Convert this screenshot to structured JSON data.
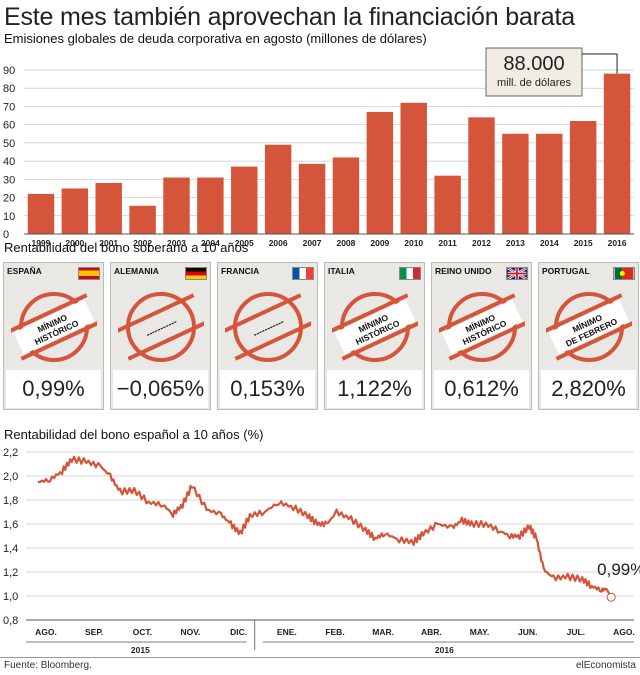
{
  "title": "Este mes también aprovechan la financiación barata",
  "colors": {
    "bar": "#d4553a",
    "line": "#d4553a",
    "grid": "#c8c8c8",
    "card_bg": "#e9e8e4",
    "stamp": "#d4553a"
  },
  "chart_data": [
    {
      "type": "bar",
      "title": "Emisiones globales de deuda corporativa en agosto (millones de dólares)",
      "categories": [
        "1999",
        "2000",
        "2001",
        "2002",
        "2003",
        "2004",
        "2005",
        "2006",
        "2007",
        "2008",
        "2009",
        "2010",
        "2011",
        "2012",
        "2013",
        "2014",
        "2015",
        "2016"
      ],
      "values": [
        22,
        25,
        28,
        15.5,
        31,
        31,
        37,
        49,
        38.5,
        42,
        67,
        72,
        32,
        64,
        55,
        55,
        62,
        88
      ],
      "ylim": [
        0,
        90
      ],
      "yticks": [
        0,
        10,
        20,
        30,
        40,
        50,
        60,
        70,
        80,
        90
      ],
      "grid": true,
      "annotation": {
        "value": "88.000",
        "unit": "mill. de dólares",
        "target": "2016"
      }
    },
    {
      "type": "line",
      "title": "Rentabilidad del bono español a 10 años (%)",
      "ylim": [
        0.8,
        2.2
      ],
      "yticks": [
        "0,8",
        "1,0",
        "1,2",
        "1,4",
        "1,6",
        "1,8",
        "2,0",
        "2,2"
      ],
      "grid": true,
      "x_months": [
        "AGO.",
        "SEP.",
        "OCT.",
        "NOV.",
        "DIC.",
        "ENE.",
        "FEB.",
        "MAR.",
        "ABR.",
        "MAY.",
        "JUN.",
        "JUL.",
        "AGO."
      ],
      "x_years": [
        "2015",
        "2016"
      ],
      "end_label": "0,99%",
      "monthly_points": [
        {
          "m": 0.0,
          "v": 1.95
        },
        {
          "m": 0.25,
          "v": 1.97
        },
        {
          "m": 0.5,
          "v": 2.04
        },
        {
          "m": 0.7,
          "v": 2.14
        },
        {
          "m": 1.0,
          "v": 2.12
        },
        {
          "m": 1.3,
          "v": 2.08
        },
        {
          "m": 1.5,
          "v": 2.0
        },
        {
          "m": 1.7,
          "v": 1.87
        },
        {
          "m": 2.0,
          "v": 1.88
        },
        {
          "m": 2.3,
          "v": 1.78
        },
        {
          "m": 2.6,
          "v": 1.76
        },
        {
          "m": 2.8,
          "v": 1.68
        },
        {
          "m": 3.0,
          "v": 1.76
        },
        {
          "m": 3.2,
          "v": 1.92
        },
        {
          "m": 3.5,
          "v": 1.72
        },
        {
          "m": 3.8,
          "v": 1.68
        },
        {
          "m": 4.0,
          "v": 1.6
        },
        {
          "m": 4.2,
          "v": 1.52
        },
        {
          "m": 4.4,
          "v": 1.67
        },
        {
          "m": 4.7,
          "v": 1.7
        },
        {
          "m": 5.0,
          "v": 1.78
        },
        {
          "m": 5.3,
          "v": 1.74
        },
        {
          "m": 5.6,
          "v": 1.67
        },
        {
          "m": 5.8,
          "v": 1.6
        },
        {
          "m": 6.0,
          "v": 1.6
        },
        {
          "m": 6.2,
          "v": 1.7
        },
        {
          "m": 6.5,
          "v": 1.64
        },
        {
          "m": 6.8,
          "v": 1.55
        },
        {
          "m": 7.0,
          "v": 1.48
        },
        {
          "m": 7.2,
          "v": 1.52
        },
        {
          "m": 7.5,
          "v": 1.47
        },
        {
          "m": 7.8,
          "v": 1.45
        },
        {
          "m": 8.0,
          "v": 1.52
        },
        {
          "m": 8.3,
          "v": 1.6
        },
        {
          "m": 8.6,
          "v": 1.57
        },
        {
          "m": 8.8,
          "v": 1.63
        },
        {
          "m": 9.0,
          "v": 1.6
        },
        {
          "m": 9.3,
          "v": 1.6
        },
        {
          "m": 9.6,
          "v": 1.54
        },
        {
          "m": 9.8,
          "v": 1.5
        },
        {
          "m": 10.0,
          "v": 1.5
        },
        {
          "m": 10.2,
          "v": 1.58
        },
        {
          "m": 10.35,
          "v": 1.48
        },
        {
          "m": 10.5,
          "v": 1.22
        },
        {
          "m": 10.7,
          "v": 1.15
        },
        {
          "m": 11.0,
          "v": 1.16
        },
        {
          "m": 11.3,
          "v": 1.14
        },
        {
          "m": 11.5,
          "v": 1.08
        },
        {
          "m": 11.7,
          "v": 1.05
        },
        {
          "m": 11.8,
          "v": 1.06
        },
        {
          "m": 11.9,
          "v": 0.99
        }
      ]
    }
  ],
  "bond_section": {
    "title": "Rentabilidad del bono soberano a 10 años",
    "cards": [
      {
        "country": "ESPAÑA",
        "flag": "spain-flag-icon",
        "stamp_line1": "MÍNIMO",
        "stamp_line2": "HISTÓRICO",
        "value": "0,99%"
      },
      {
        "country": "ALEMANIA",
        "flag": "germany-flag-icon",
        "stamp_line1": "-----------",
        "stamp_line2": "",
        "value": "−0,065%"
      },
      {
        "country": "FRANCIA",
        "flag": "france-flag-icon",
        "stamp_line1": "-----------",
        "stamp_line2": "",
        "value": "0,153%"
      },
      {
        "country": "ITALIA",
        "flag": "italy-flag-icon",
        "stamp_line1": "MÍNIMO",
        "stamp_line2": "HISTÓRICO",
        "value": "1,122%"
      },
      {
        "country": "REINO UNIDO",
        "flag": "uk-flag-icon",
        "stamp_line1": "MÍNIMO",
        "stamp_line2": "HISTÓRICO",
        "value": "0,612%"
      },
      {
        "country": "PORTUGAL",
        "flag": "portugal-flag-icon",
        "stamp_line1": "MÍNIMO",
        "stamp_line2": "DE FEBRERO",
        "value": "2,820%"
      }
    ]
  },
  "footer": {
    "source": "Fuente: Bloomberg.",
    "brand": "elEconomista"
  }
}
